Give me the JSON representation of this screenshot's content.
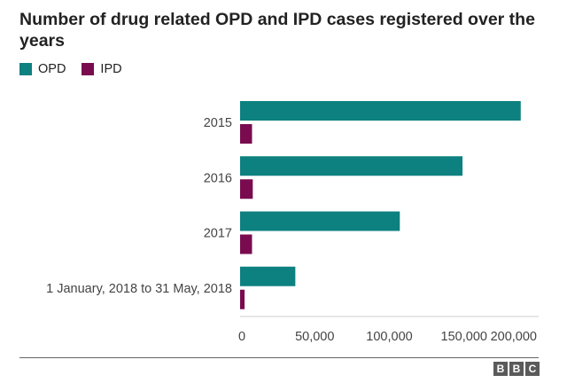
{
  "chart_data": {
    "type": "bar",
    "orientation": "horizontal",
    "title": "Number of drug related OPD and IPD cases registered over the years",
    "categories": [
      "2015",
      "2016",
      "2017",
      "1 January, 2018 to 31 May, 2018"
    ],
    "series": [
      {
        "name": "OPD",
        "color": "#0d8080",
        "values": [
          188000,
          149000,
          107000,
          37000
        ]
      },
      {
        "name": "IPD",
        "color": "#7a0b4f",
        "values": [
          8000,
          8500,
          8000,
          3000
        ]
      }
    ],
    "xlim": [
      0,
      200000
    ],
    "xticks": [
      0,
      50000,
      100000,
      150000,
      200000
    ],
    "xtick_labels": [
      "0",
      "50,000",
      "100,000",
      "150,000",
      "200,000"
    ],
    "grid": false,
    "legend_position": "top-left"
  },
  "footer": {
    "logo_letters": [
      "B",
      "B",
      "C"
    ]
  }
}
